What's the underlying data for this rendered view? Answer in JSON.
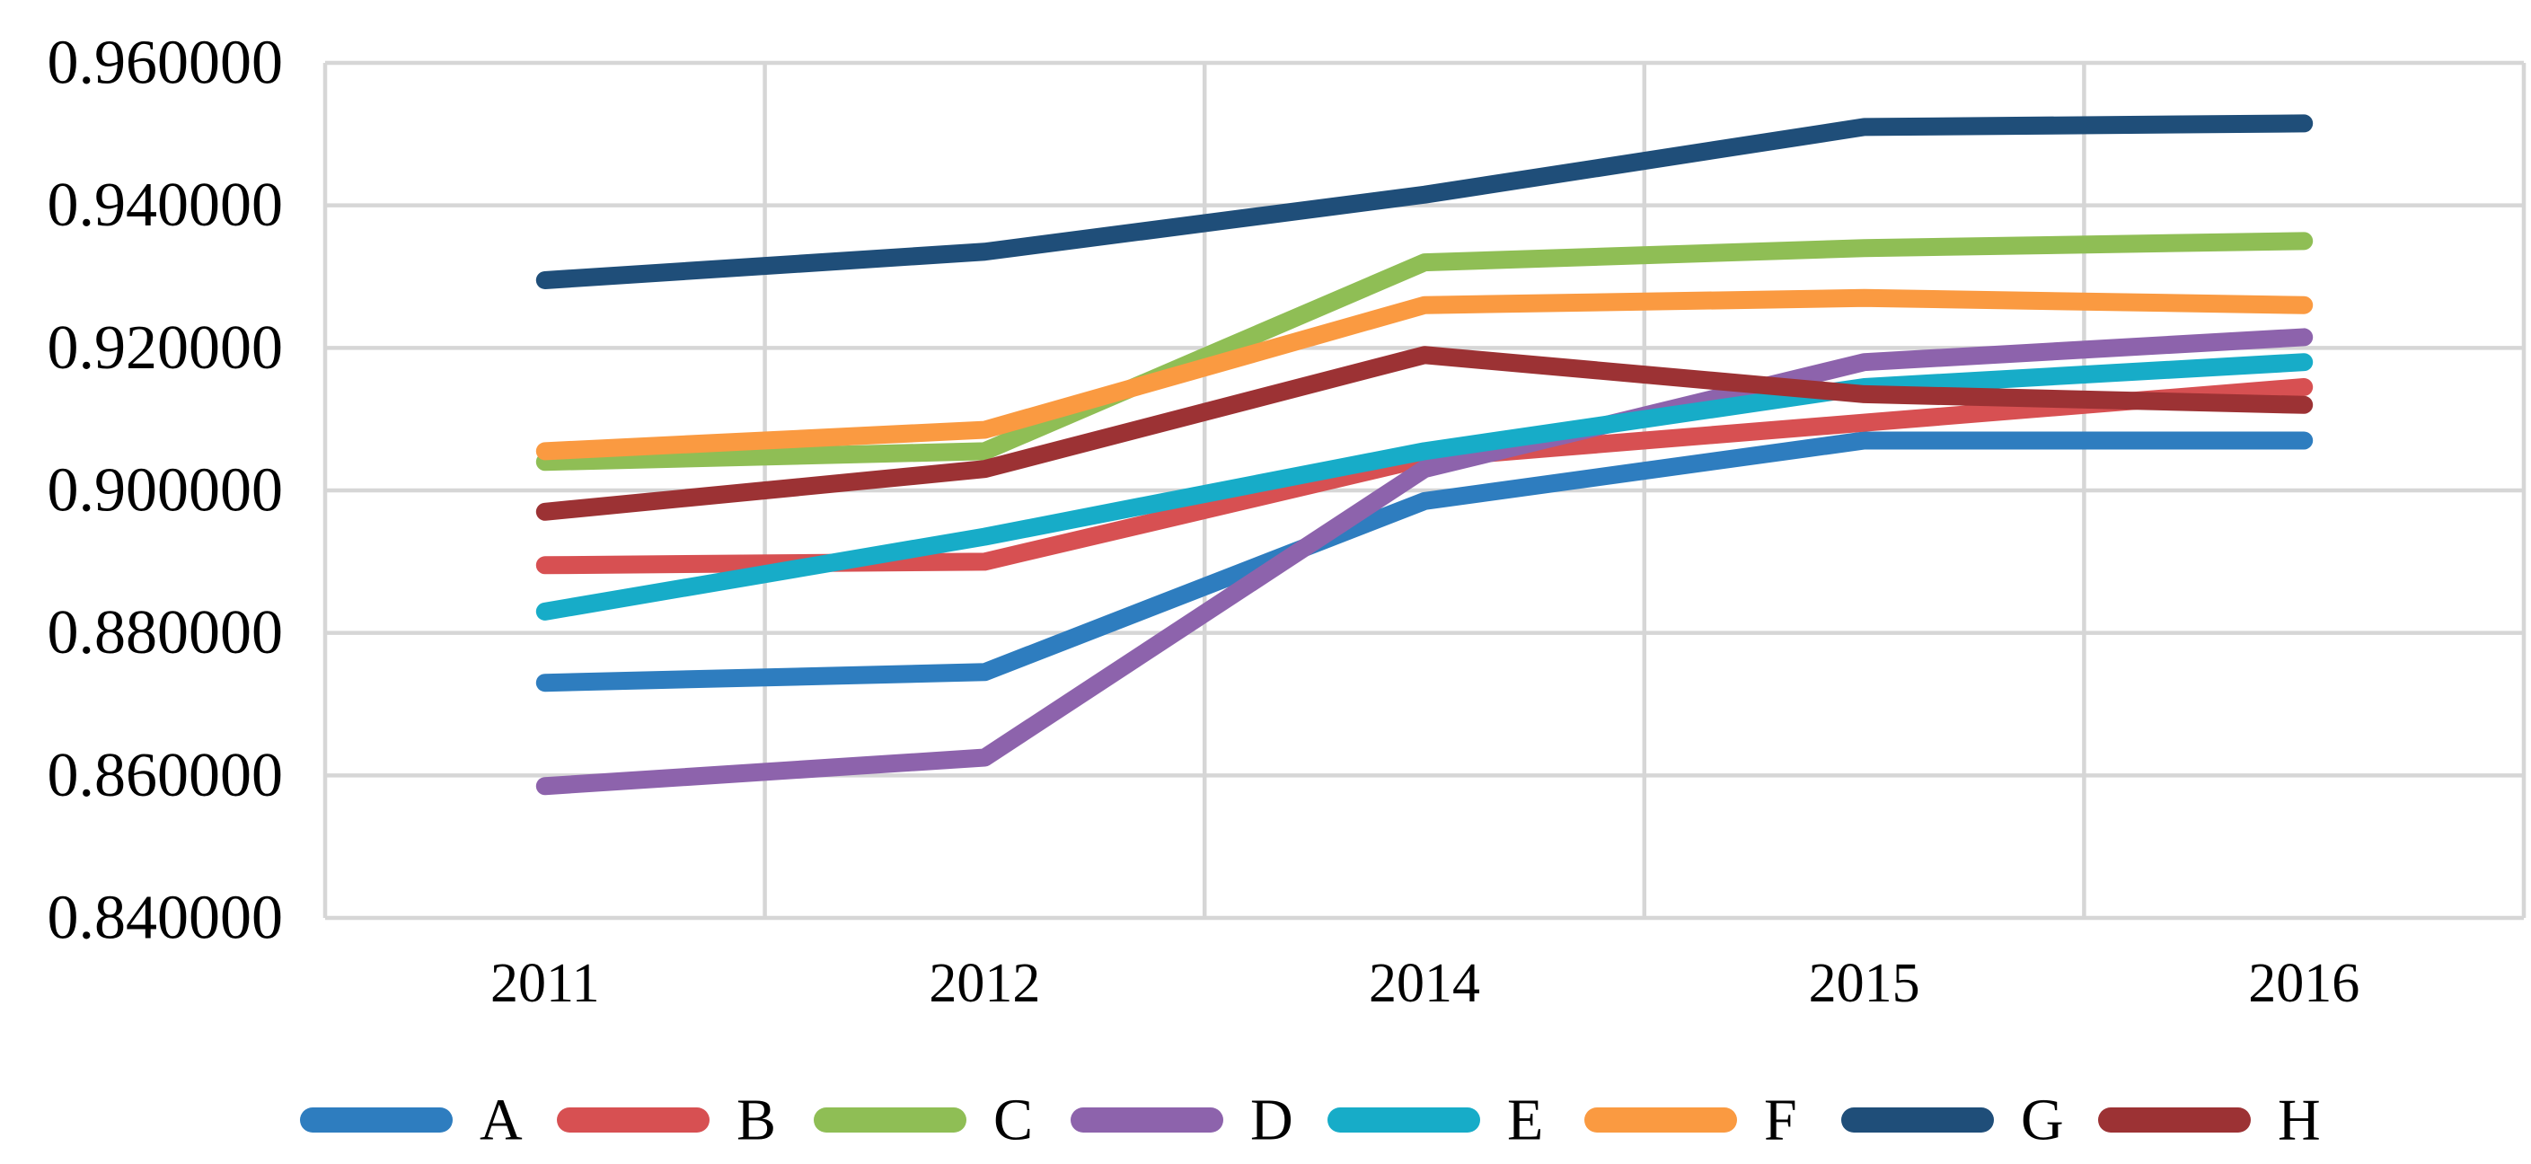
{
  "chart_data": {
    "type": "line",
    "title": "",
    "xlabel": "",
    "ylabel": "",
    "x": [
      "2011",
      "2012",
      "2014",
      "2015",
      "2016"
    ],
    "y_ticks": [
      "0.960000",
      "0.940000",
      "0.920000",
      "0.900000",
      "0.880000",
      "0.860000",
      "0.840000"
    ],
    "ylim": [
      0.84,
      0.96
    ],
    "y_tick_step": 0.02,
    "grid": true,
    "legend_position": "bottom",
    "series": [
      {
        "name": "A",
        "color": "#2E7DBF",
        "values": [
          0.873,
          0.8745,
          0.8985,
          0.907,
          0.907
        ]
      },
      {
        "name": "B",
        "color": "#D75052",
        "values": [
          0.8895,
          0.89,
          0.9045,
          0.9095,
          0.9145
        ]
      },
      {
        "name": "C",
        "color": "#8FBE55",
        "values": [
          0.904,
          0.9055,
          0.932,
          0.934,
          0.935
        ]
      },
      {
        "name": "D",
        "color": "#8D63AC",
        "values": [
          0.8585,
          0.8625,
          0.903,
          0.918,
          0.9215
        ]
      },
      {
        "name": "E",
        "color": "#17ACC8",
        "values": [
          0.883,
          0.8935,
          0.9055,
          0.9145,
          0.918
        ]
      },
      {
        "name": "F",
        "color": "#FA9A41",
        "values": [
          0.9055,
          0.9085,
          0.926,
          0.927,
          0.926
        ]
      },
      {
        "name": "G",
        "color": "#1F4E79",
        "values": [
          0.9295,
          0.9335,
          0.9415,
          0.951,
          0.9515
        ]
      },
      {
        "name": "H",
        "color": "#9C3234",
        "values": [
          0.897,
          0.903,
          0.919,
          0.9135,
          0.912
        ]
      }
    ]
  },
  "colors": {
    "gridline": "#D6D6D6",
    "background": "#FFFFFF",
    "text": "#000000"
  }
}
